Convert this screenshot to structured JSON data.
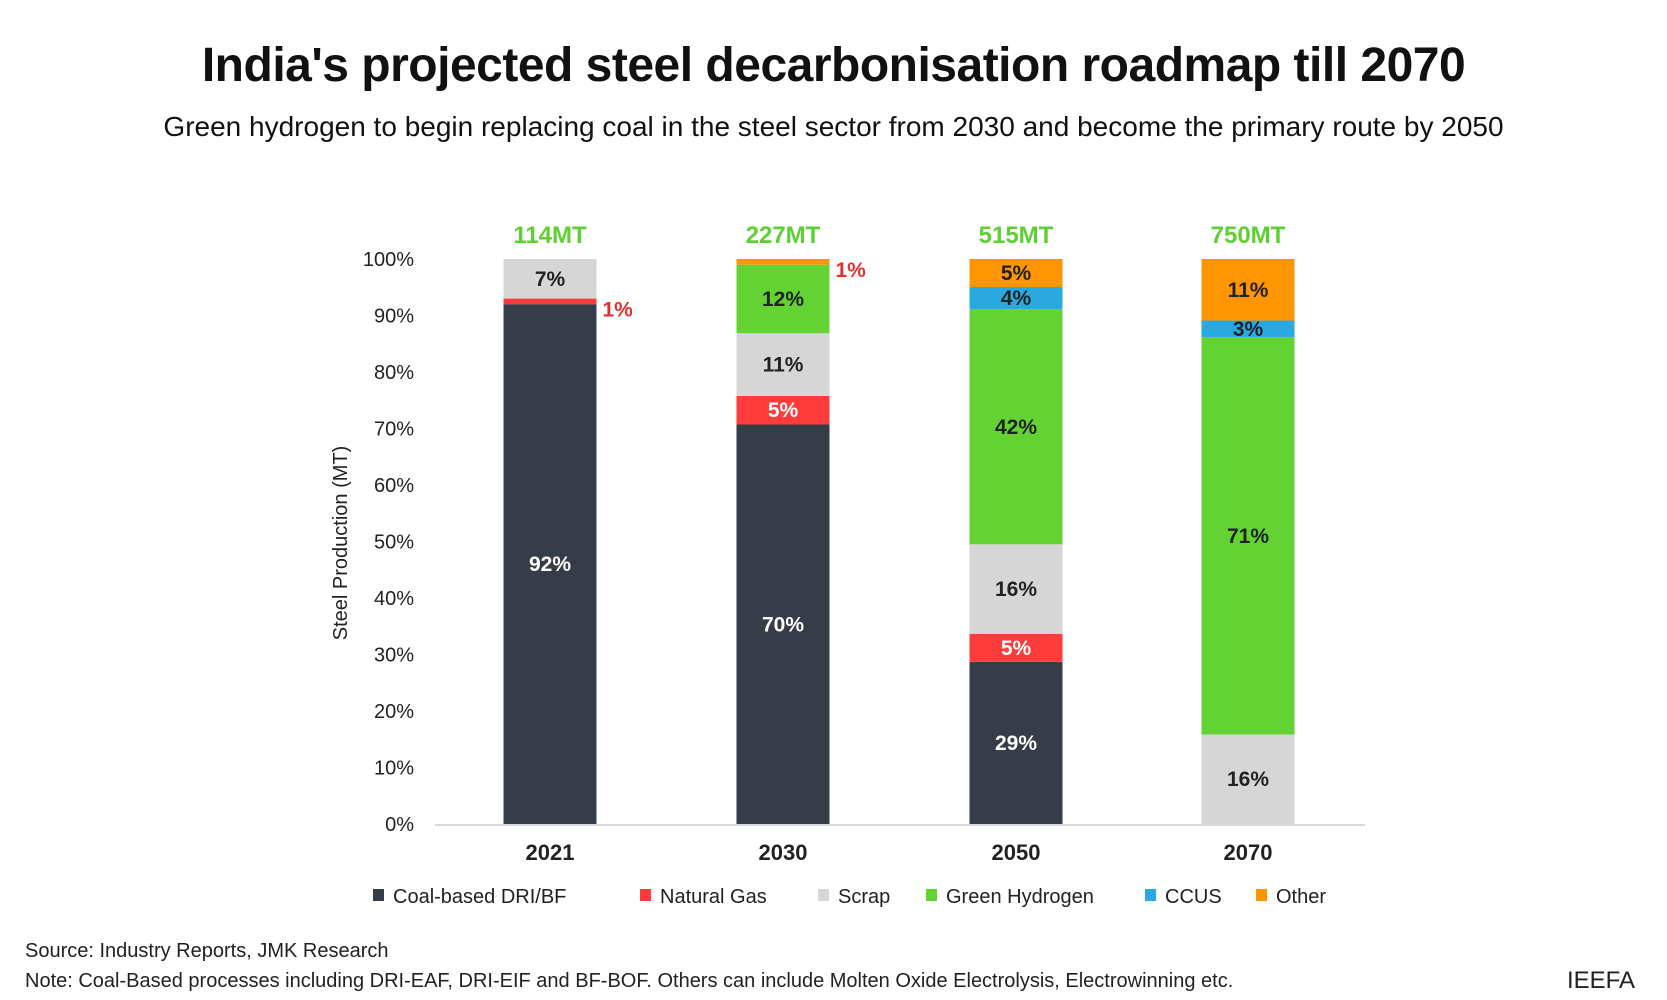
{
  "title": "India's projected steel decarbonisation roadmap till 2070",
  "subtitle": "Green hydrogen to begin replacing coal in the steel sector from 2030 and become the primary route by 2050",
  "source": "Source: Industry Reports, JMK Research",
  "note": "Note: Coal-Based processes including DRI-EAF, DRI-EIF and BF-BOF. Others can include Molten Oxide Electrolysis, Electrowinning etc.",
  "brand": "IEEFA",
  "chart_data": {
    "type": "bar",
    "stacked": true,
    "categories": [
      "2021",
      "2030",
      "2050",
      "2070"
    ],
    "totals": [
      "114MT",
      "227MT",
      "515MT",
      "750MT"
    ],
    "ylabel": "Steel Production (MT)",
    "ylim": [
      0,
      100
    ],
    "yticks": [
      "0%",
      "10%",
      "20%",
      "30%",
      "40%",
      "50%",
      "60%",
      "70%",
      "80%",
      "90%",
      "100%"
    ],
    "legend_position": "bottom",
    "grid": false,
    "series": [
      {
        "name": "Coal-based DRI/BF",
        "color": "#363C48",
        "values": [
          92,
          70,
          29,
          0
        ],
        "label_color": "#FFFFFF"
      },
      {
        "name": "Natural Gas",
        "color": "#FF3B3B",
        "values": [
          1,
          5,
          5,
          0
        ],
        "label_color": "#FFFFFF"
      },
      {
        "name": "Scrap",
        "color": "#D6D6D6",
        "values": [
          7,
          11,
          16,
          16
        ],
        "label_color": "#222222"
      },
      {
        "name": "Green Hydrogen",
        "color": "#63D334",
        "values": [
          0,
          12,
          42,
          71
        ],
        "label_color": "#222222"
      },
      {
        "name": "CCUS",
        "color": "#29A9E0",
        "values": [
          0,
          0,
          4,
          3
        ],
        "label_color": "#222222"
      },
      {
        "name": "Other",
        "color": "#FF9500",
        "values": [
          0,
          1,
          5,
          11
        ],
        "label_color": "#222222"
      }
    ]
  }
}
